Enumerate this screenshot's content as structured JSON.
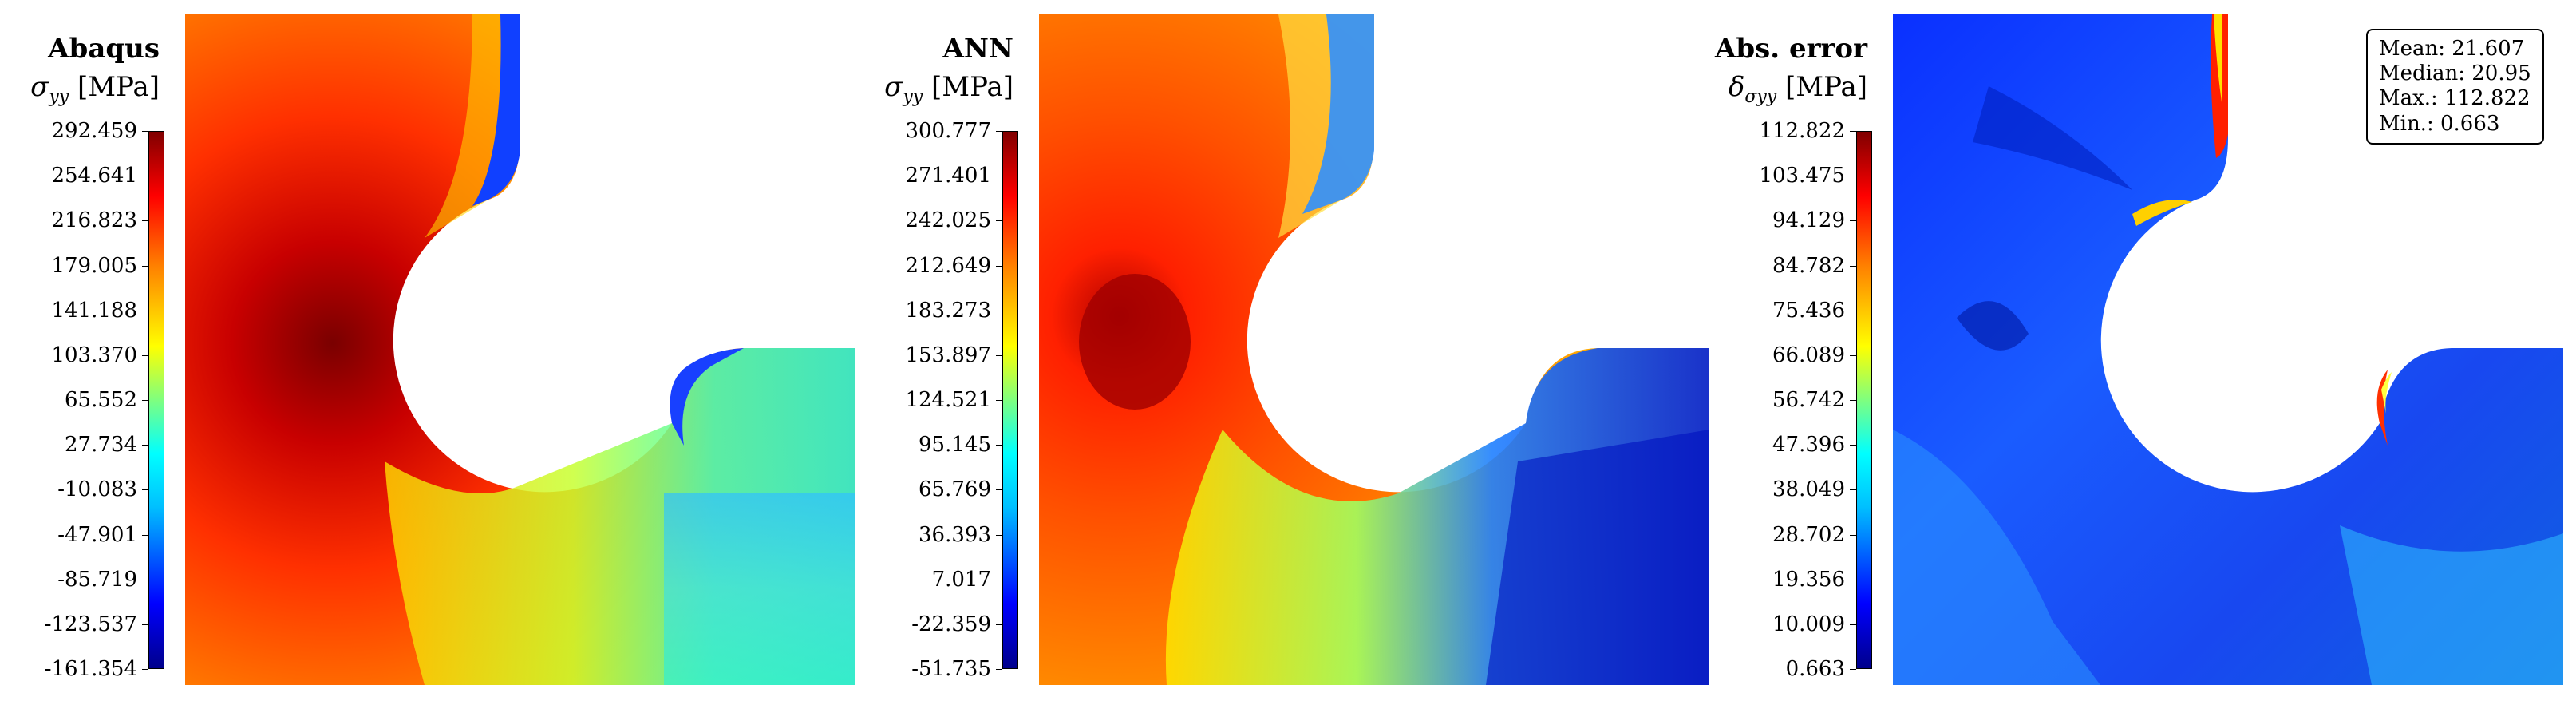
{
  "panels": [
    {
      "title": "Abaqus",
      "quantity_symbol": "σ",
      "quantity_sub": "yy",
      "unit": "[MPa]",
      "ticks": [
        "292.459",
        "254.641",
        "216.823",
        "179.005",
        "141.188",
        "103.370",
        "65.552",
        "27.734",
        "-10.083",
        "-47.901",
        "-85.719",
        "-123.537",
        "-161.354"
      ]
    },
    {
      "title": "ANN",
      "quantity_symbol": "σ",
      "quantity_sub": "yy",
      "unit": "[MPa]",
      "ticks": [
        "300.777",
        "271.401",
        "242.025",
        "212.649",
        "183.273",
        "153.897",
        "124.521",
        "95.145",
        "65.769",
        "36.393",
        "7.017",
        "-22.359",
        "-51.735"
      ]
    },
    {
      "title": "Abs. error",
      "quantity_symbol": "δ",
      "quantity_sub": "σyy",
      "unit": "[MPa]",
      "ticks": [
        "112.822",
        "103.475",
        "94.129",
        "84.782",
        "75.436",
        "66.089",
        "56.742",
        "47.396",
        "38.049",
        "28.702",
        "19.356",
        "10.009",
        "0.663"
      ]
    }
  ],
  "stats": {
    "mean": "Mean: 21.607",
    "median": "Median: 20.95",
    "max": "Max.: 112.822",
    "min": "Min.: 0.663"
  },
  "colormap": "jet"
}
